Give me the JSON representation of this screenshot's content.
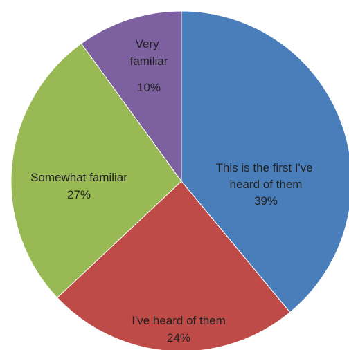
{
  "chart_data": {
    "type": "pie",
    "title": "",
    "slices": [
      {
        "label": "This is the first I've heard of them",
        "value": 39,
        "display": "39%",
        "color": "#4a7ebb"
      },
      {
        "label": "I've heard of them",
        "value": 24,
        "display": "24%",
        "color": "#be4b48"
      },
      {
        "label": "Somewhat familiar",
        "value": 27,
        "display": "27%",
        "color": "#98b954"
      },
      {
        "label": "Very familiar",
        "value": 10,
        "display": "10%",
        "color": "#7d60a0"
      }
    ],
    "start_angle": "12 o'clock",
    "direction": "clockwise",
    "legend": "none",
    "data_labels": "inside slices"
  }
}
